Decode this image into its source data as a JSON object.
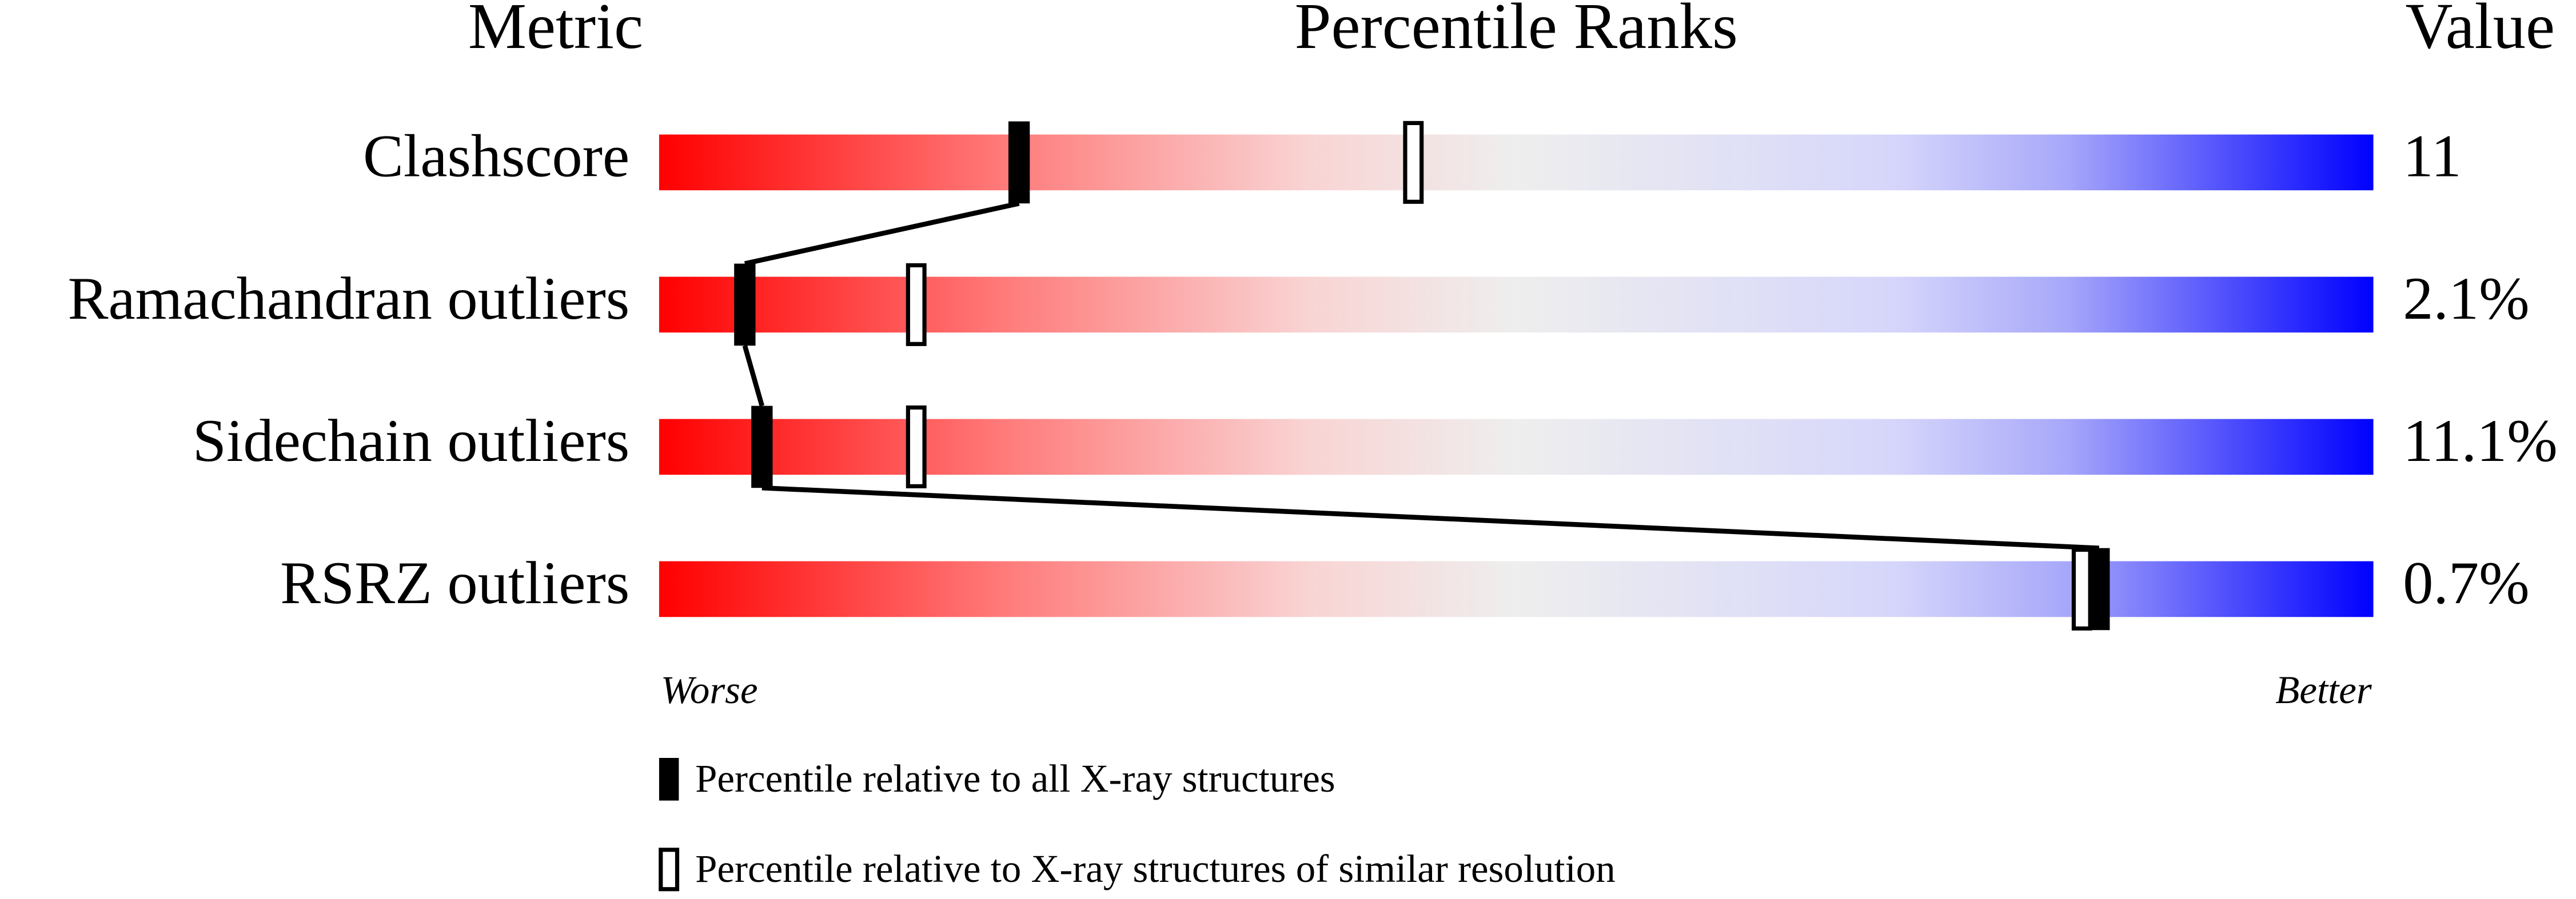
{
  "chart_data": {
    "type": "percentile",
    "header": {
      "metric": "Metric",
      "ranks": "Percentile Ranks",
      "value": "Value"
    },
    "categories": [
      "Clashscore",
      "Ramachandran outliers",
      "Sidechain outliers",
      "RSRZ outliers"
    ],
    "values": [
      11,
      2.1,
      11.1,
      0.7
    ],
    "value_labels": [
      "11",
      "2.1%",
      "11.1%",
      "0.7%"
    ],
    "xlim": [
      0,
      100
    ],
    "x_end_labels": [
      "Worse",
      "Better"
    ],
    "series": [
      {
        "name": "Percentile relative to all X-ray structures",
        "color": "#000000",
        "fill": "solid",
        "values": [
          21,
          5,
          6,
          84
        ]
      },
      {
        "name": "Percentile relative to X-ray structures of similar resolution",
        "color": "#000000",
        "fill": "open",
        "values": [
          44,
          15,
          15,
          83
        ]
      }
    ]
  }
}
